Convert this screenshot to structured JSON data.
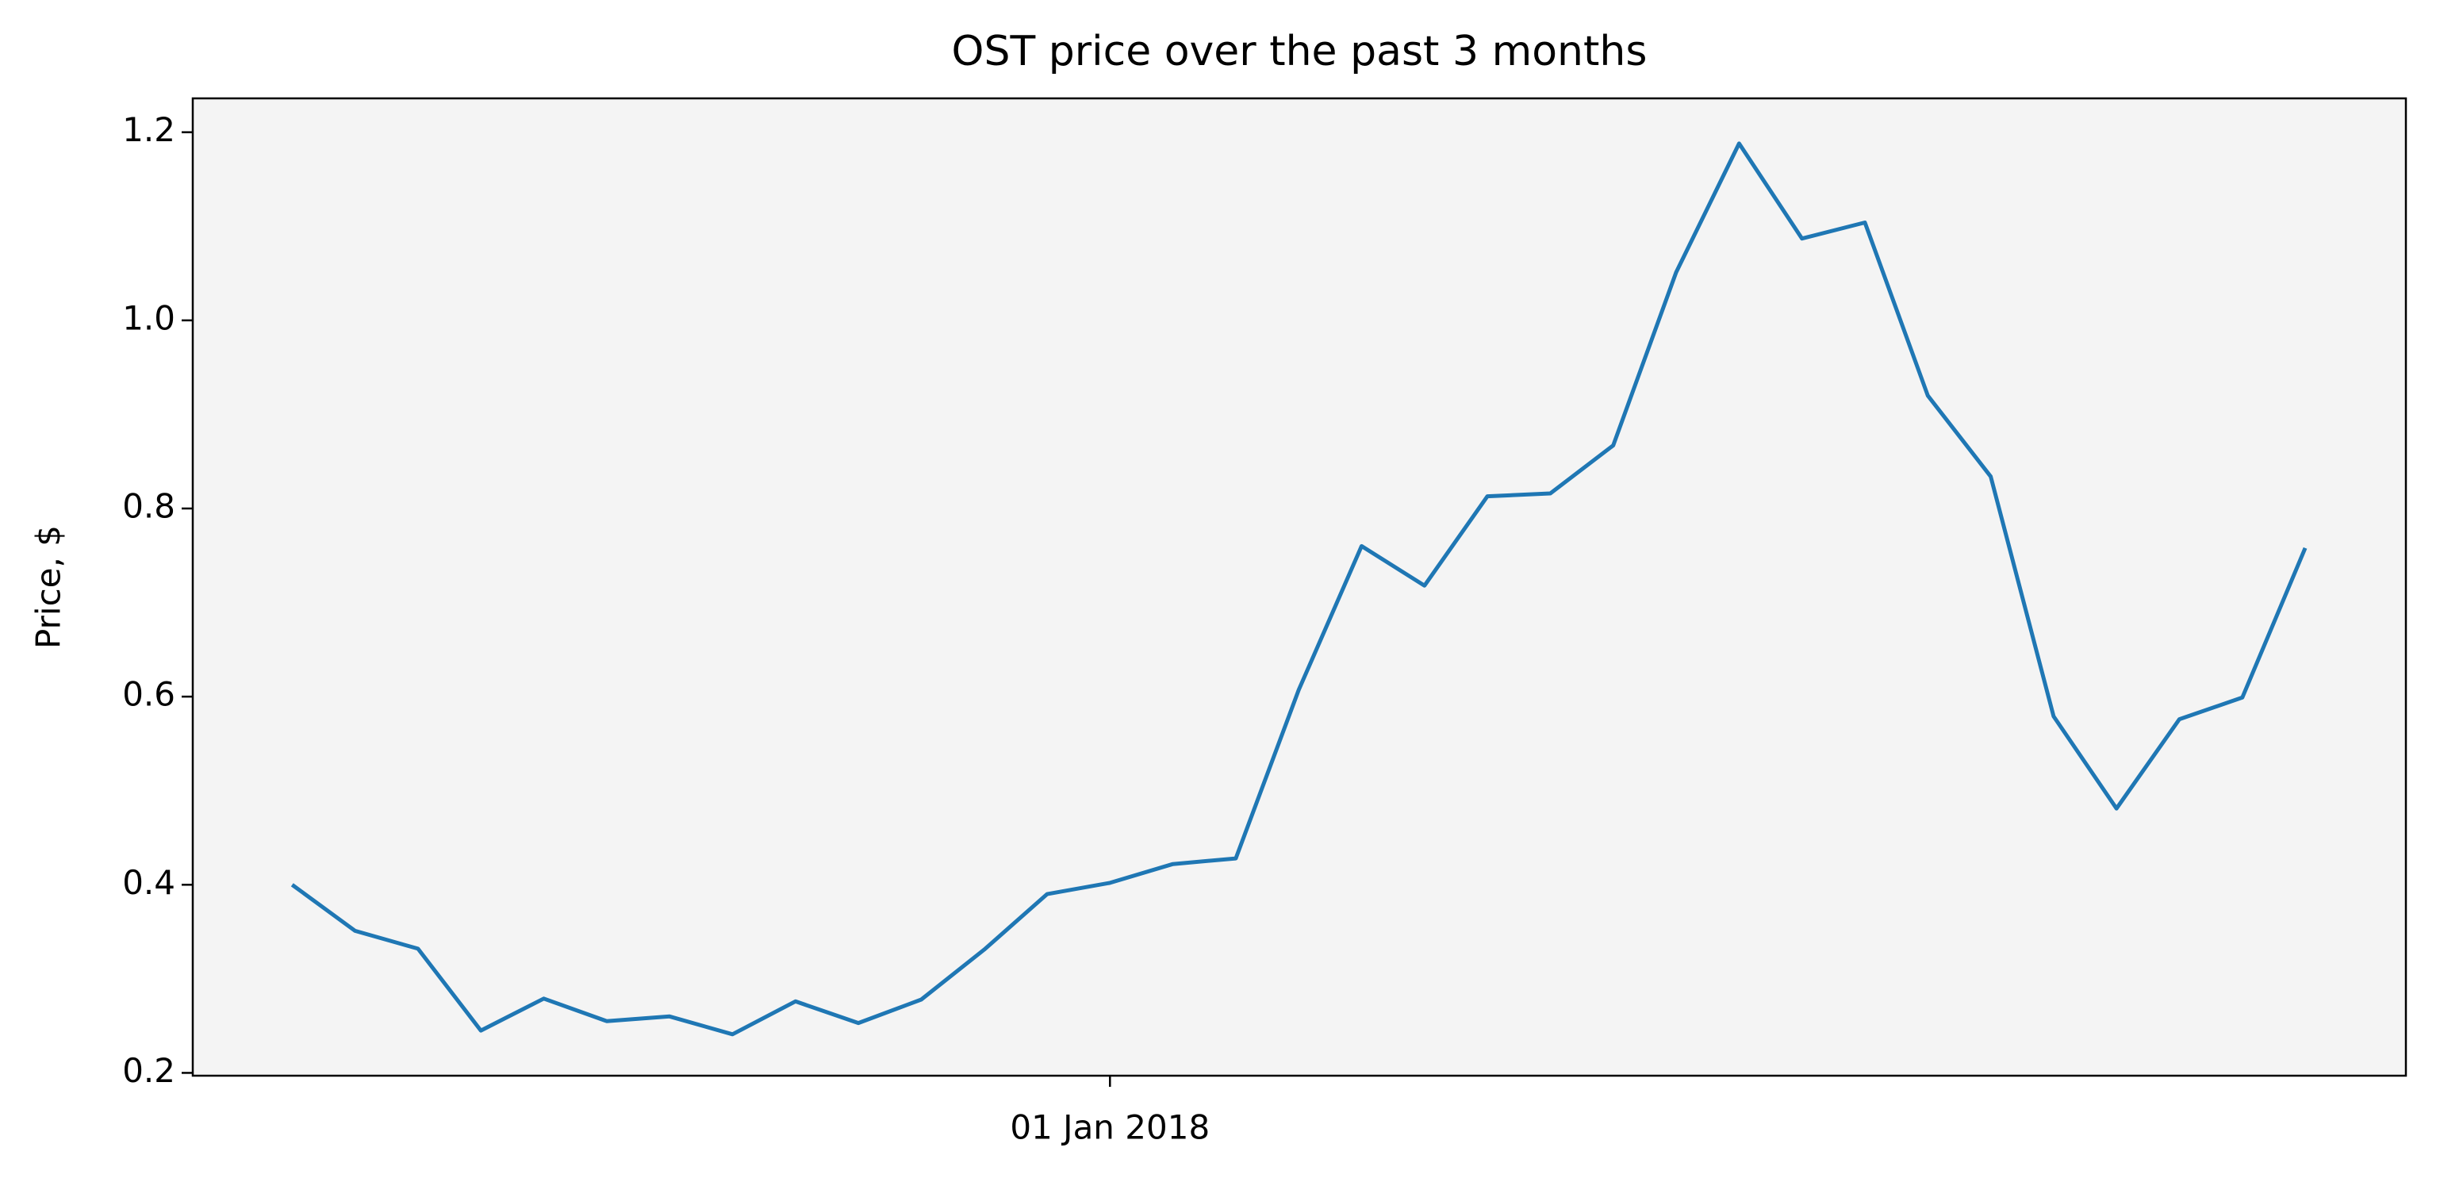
{
  "chart_data": {
    "type": "line",
    "title": "OST price over the past 3 months",
    "y_label": "Price, $",
    "categories": [
      null,
      null,
      null,
      null,
      null,
      null,
      null,
      null,
      null,
      null,
      null,
      null,
      null,
      "01 Jan 2018",
      null,
      null,
      null,
      null,
      null,
      null,
      null,
      null,
      null,
      null,
      null,
      null,
      null,
      null,
      null,
      null,
      null,
      null,
      null
    ],
    "values": [
      0.4,
      0.351,
      0.332,
      0.245,
      0.279,
      0.255,
      0.26,
      0.241,
      0.276,
      0.253,
      0.278,
      0.331,
      0.39,
      0.402,
      0.422,
      0.428,
      0.607,
      0.76,
      0.718,
      0.813,
      0.816,
      0.867,
      1.051,
      1.188,
      1.087,
      1.104,
      0.92,
      0.834,
      0.579,
      0.481,
      0.576,
      0.599,
      0.758
    ],
    "color": "#1f77b4",
    "ylim": [
      0.197,
      1.236
    ],
    "yticks": [
      0.2,
      0.4,
      0.6,
      0.8,
      {
        "value": 1,
        "label": "1.0"
      },
      1.2
    ],
    "background": "#f4f4f4"
  }
}
